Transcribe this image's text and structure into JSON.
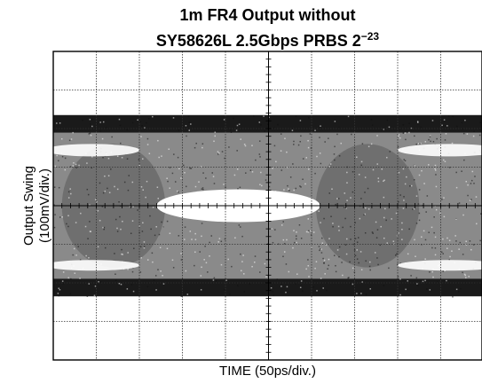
{
  "chart_data": {
    "type": "eye-diagram",
    "title_line1": "1m FR4 Output without",
    "title_line2_main": "SY58626L 2.5Gbps PRBS 2",
    "title_line2_sup": "−23",
    "xlabel": "TIME (50ps/div.)",
    "ylabel_line1": "Output Swing",
    "ylabel_line2": "(100mV/div.)",
    "x_divisions": 10,
    "y_divisions": 8,
    "grid": true,
    "center_tick_marks": true,
    "signal": {
      "high_level_div": 2.0,
      "low_level_div": -2.0,
      "noise_band_div": 0.35,
      "eye_opening_div": 0.5
    },
    "colors": {
      "trace": "#1a1a1a",
      "fill": "#8a8a8a",
      "eye": "#ffffff",
      "grid": "#333333",
      "frame": "#000000"
    }
  }
}
